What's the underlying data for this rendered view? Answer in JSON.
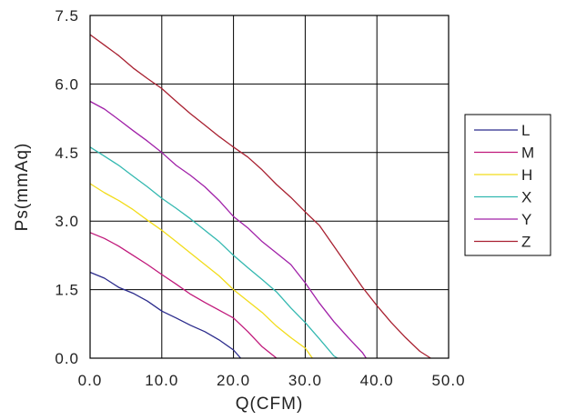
{
  "chart_data": {
    "type": "line",
    "title": "",
    "xlabel": "Q(CFM)",
    "ylabel": "Ps(mmAq)",
    "xlim": [
      0,
      50
    ],
    "ylim": [
      0,
      7.5
    ],
    "xticks": [
      "0.0",
      "10.0",
      "20.0",
      "30.0",
      "40.0",
      "50.0"
    ],
    "yticks": [
      "0.0",
      "1.5",
      "3.0",
      "4.5",
      "6.0",
      "7.5"
    ],
    "grid": true,
    "legend_position": "right",
    "series": [
      {
        "name": "L",
        "color": "#2b2b8c",
        "points": [
          [
            0,
            1.88
          ],
          [
            2,
            1.75
          ],
          [
            4,
            1.55
          ],
          [
            6,
            1.42
          ],
          [
            8,
            1.25
          ],
          [
            10,
            1.03
          ],
          [
            12,
            0.88
          ],
          [
            14,
            0.72
          ],
          [
            16,
            0.58
          ],
          [
            18,
            0.4
          ],
          [
            20,
            0.18
          ],
          [
            21,
            0.0
          ]
        ]
      },
      {
        "name": "M",
        "color": "#c0187a",
        "points": [
          [
            0,
            2.75
          ],
          [
            2,
            2.62
          ],
          [
            4,
            2.45
          ],
          [
            6,
            2.25
          ],
          [
            8,
            2.05
          ],
          [
            10,
            1.83
          ],
          [
            12,
            1.62
          ],
          [
            14,
            1.4
          ],
          [
            16,
            1.22
          ],
          [
            18,
            1.05
          ],
          [
            20,
            0.88
          ],
          [
            22,
            0.58
          ],
          [
            24,
            0.25
          ],
          [
            26,
            0.0
          ]
        ]
      },
      {
        "name": "H",
        "color": "#f2dc1a",
        "points": [
          [
            0,
            3.82
          ],
          [
            2,
            3.62
          ],
          [
            4,
            3.45
          ],
          [
            6,
            3.25
          ],
          [
            8,
            3.02
          ],
          [
            10,
            2.8
          ],
          [
            12,
            2.55
          ],
          [
            14,
            2.3
          ],
          [
            16,
            2.05
          ],
          [
            18,
            1.8
          ],
          [
            20,
            1.5
          ],
          [
            22,
            1.25
          ],
          [
            24,
            1.0
          ],
          [
            26,
            0.7
          ],
          [
            28,
            0.45
          ],
          [
            30,
            0.22
          ],
          [
            31,
            0.0
          ]
        ]
      },
      {
        "name": "X",
        "color": "#33b8b0",
        "points": [
          [
            0,
            4.62
          ],
          [
            2,
            4.42
          ],
          [
            4,
            4.22
          ],
          [
            6,
            3.98
          ],
          [
            8,
            3.75
          ],
          [
            10,
            3.5
          ],
          [
            12,
            3.28
          ],
          [
            14,
            3.05
          ],
          [
            16,
            2.8
          ],
          [
            18,
            2.55
          ],
          [
            20,
            2.25
          ],
          [
            22,
            1.98
          ],
          [
            24,
            1.72
          ],
          [
            26,
            1.45
          ],
          [
            28,
            1.1
          ],
          [
            30,
            0.78
          ],
          [
            32,
            0.42
          ],
          [
            34,
            0.05
          ],
          [
            34.5,
            0.0
          ]
        ]
      },
      {
        "name": "Y",
        "color": "#a020a8",
        "points": [
          [
            0,
            5.62
          ],
          [
            2,
            5.45
          ],
          [
            4,
            5.22
          ],
          [
            6,
            4.98
          ],
          [
            8,
            4.75
          ],
          [
            10,
            4.5
          ],
          [
            12,
            4.22
          ],
          [
            14,
            4.0
          ],
          [
            16,
            3.75
          ],
          [
            18,
            3.45
          ],
          [
            20,
            3.1
          ],
          [
            22,
            2.85
          ],
          [
            24,
            2.55
          ],
          [
            26,
            2.3
          ],
          [
            28,
            2.05
          ],
          [
            30,
            1.65
          ],
          [
            32,
            1.2
          ],
          [
            34,
            0.8
          ],
          [
            36,
            0.45
          ],
          [
            38,
            0.12
          ],
          [
            38.5,
            0.0
          ]
        ]
      },
      {
        "name": "Z",
        "color": "#a82030",
        "points": [
          [
            0,
            7.08
          ],
          [
            2,
            6.85
          ],
          [
            4,
            6.62
          ],
          [
            6,
            6.35
          ],
          [
            8,
            6.12
          ],
          [
            10,
            5.9
          ],
          [
            12,
            5.62
          ],
          [
            14,
            5.35
          ],
          [
            16,
            5.1
          ],
          [
            18,
            4.85
          ],
          [
            20,
            4.62
          ],
          [
            22,
            4.4
          ],
          [
            24,
            4.12
          ],
          [
            26,
            3.8
          ],
          [
            28,
            3.52
          ],
          [
            30,
            3.2
          ],
          [
            32,
            2.9
          ],
          [
            34,
            2.45
          ],
          [
            36,
            2.0
          ],
          [
            38,
            1.55
          ],
          [
            40,
            1.15
          ],
          [
            42,
            0.78
          ],
          [
            44,
            0.45
          ],
          [
            46,
            0.15
          ],
          [
            47.5,
            0.0
          ]
        ]
      }
    ]
  }
}
